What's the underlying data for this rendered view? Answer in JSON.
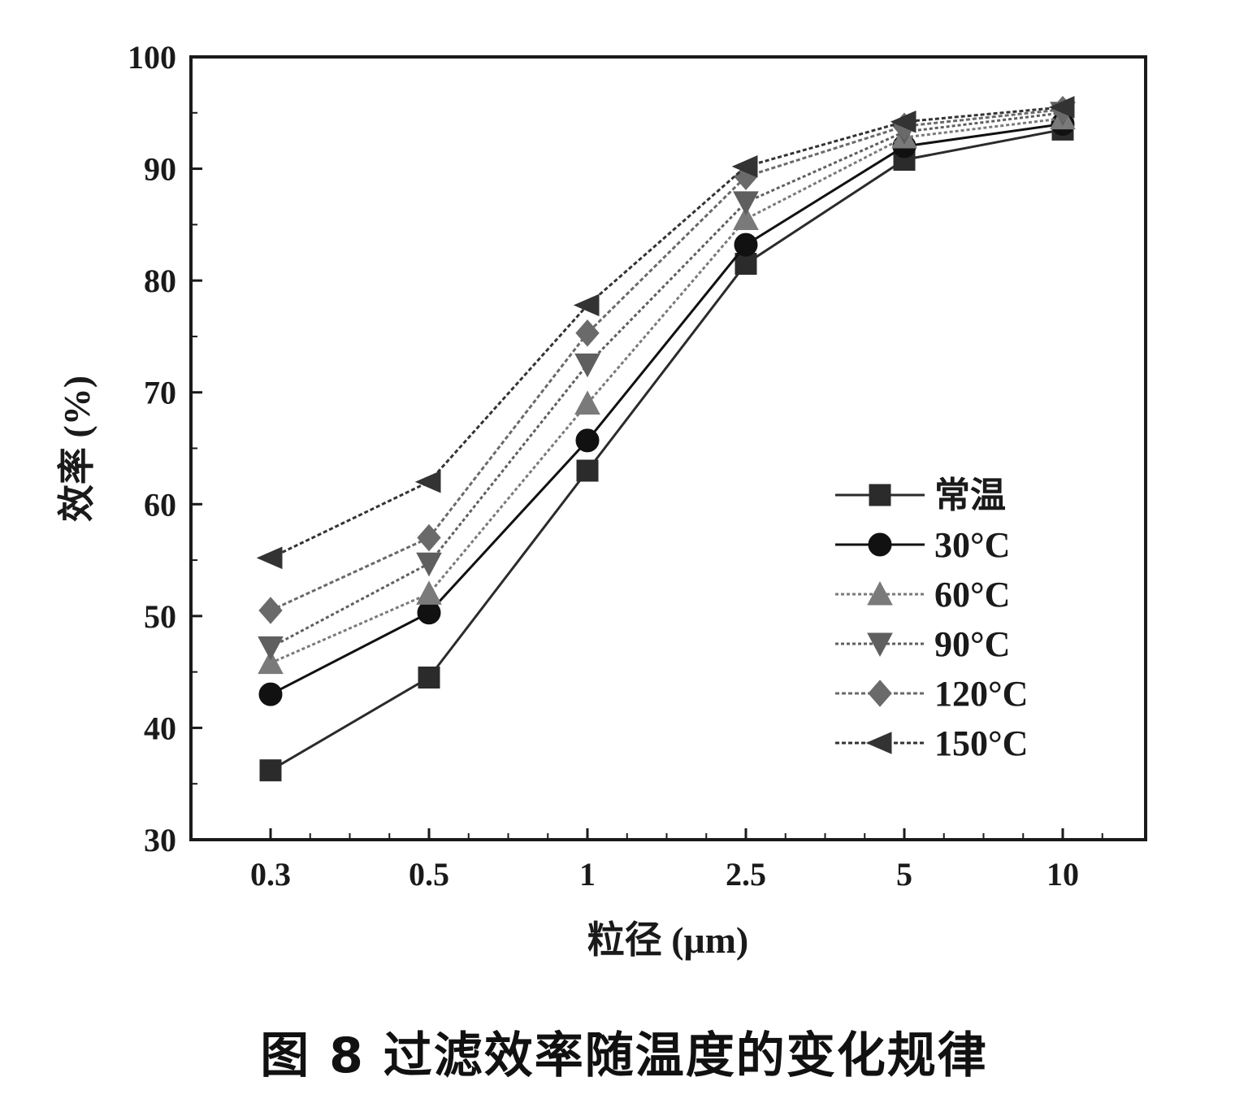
{
  "caption": "图 8  过滤效率随温度的变化规律",
  "chart_data": {
    "type": "line",
    "xlabel": "粒径 (μm)",
    "ylabel": "效率 (%)",
    "categories": [
      "0.3",
      "0.5",
      "1",
      "2.5",
      "5",
      "10"
    ],
    "yticks": [
      "30",
      "40",
      "50",
      "60",
      "70",
      "80",
      "90",
      "100"
    ],
    "ylim": [
      30,
      100
    ],
    "grid": false,
    "legend_position": "lower-right",
    "series": [
      {
        "name": "常温",
        "marker": "square",
        "values": [
          36.2,
          44.5,
          63.0,
          81.5,
          90.8,
          93.5
        ]
      },
      {
        "name": "30°C",
        "marker": "circle",
        "values": [
          43.0,
          50.3,
          65.7,
          83.2,
          92.0,
          94.0
        ]
      },
      {
        "name": "60°C",
        "marker": "triangle-up",
        "values": [
          45.8,
          52.0,
          69.0,
          85.5,
          92.8,
          94.5
        ]
      },
      {
        "name": "90°C",
        "marker": "triangle-down",
        "values": [
          47.2,
          54.7,
          72.5,
          87.0,
          93.3,
          95.0
        ]
      },
      {
        "name": "120°C",
        "marker": "diamond",
        "values": [
          50.5,
          57.0,
          75.3,
          89.3,
          93.8,
          95.3
        ]
      },
      {
        "name": "150°C",
        "marker": "triangle-left",
        "values": [
          55.2,
          62.0,
          77.8,
          90.2,
          94.2,
          95.5
        ]
      }
    ]
  }
}
